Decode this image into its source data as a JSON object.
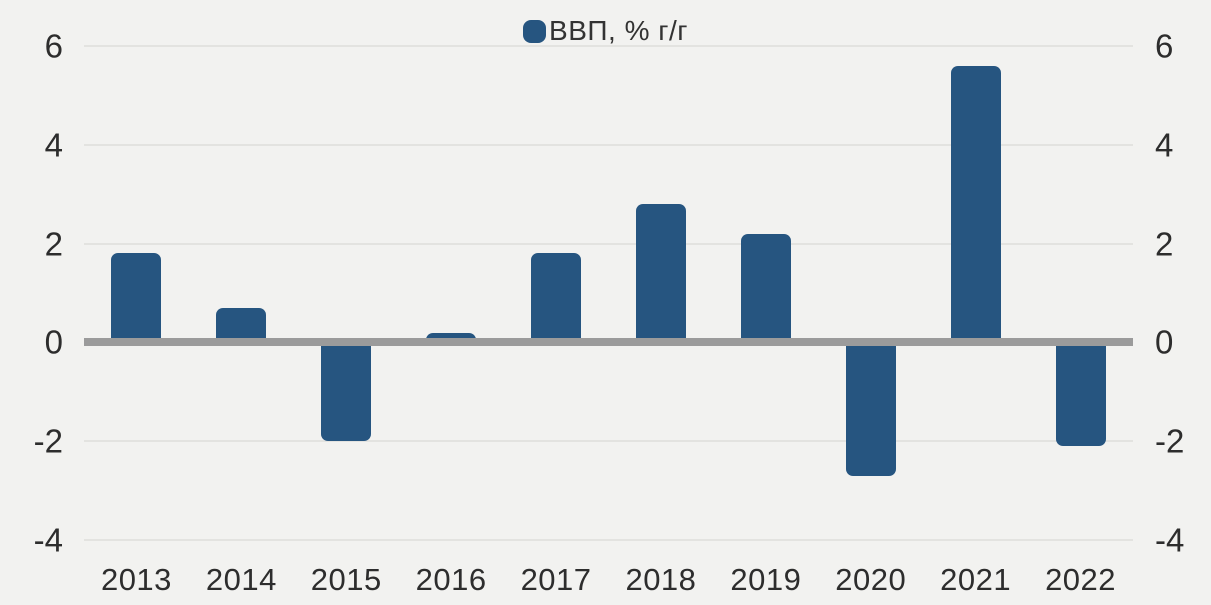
{
  "chart_data": {
    "type": "bar",
    "title": "",
    "legend_position": "top-center",
    "legend": [
      {
        "label": "ВВП, % г/г",
        "marker": "rounded-square",
        "color": "#265580"
      }
    ],
    "categories": [
      "2013",
      "2014",
      "2015",
      "2016",
      "2017",
      "2018",
      "2019",
      "2020",
      "2021",
      "2022"
    ],
    "series": [
      {
        "name": "ВВП, % г/г",
        "values": [
          1.8,
          0.7,
          -2.0,
          0.2,
          1.8,
          2.8,
          2.2,
          -2.7,
          5.6,
          -2.1
        ]
      }
    ],
    "xlabel": "",
    "ylabel": "",
    "ylim": [
      -4,
      6
    ],
    "yticks": [
      6,
      4,
      2,
      0,
      -2,
      -4
    ],
    "yticks_right": [
      6,
      4,
      2,
      0,
      -2,
      -4
    ],
    "grid": true,
    "zero_baseline": true,
    "colors": {
      "bar": "#265580",
      "background": "#f2f2f0",
      "gridline": "#e3e3e0",
      "zero_line": "#9b9b9b",
      "text": "#2d2d2d"
    }
  }
}
